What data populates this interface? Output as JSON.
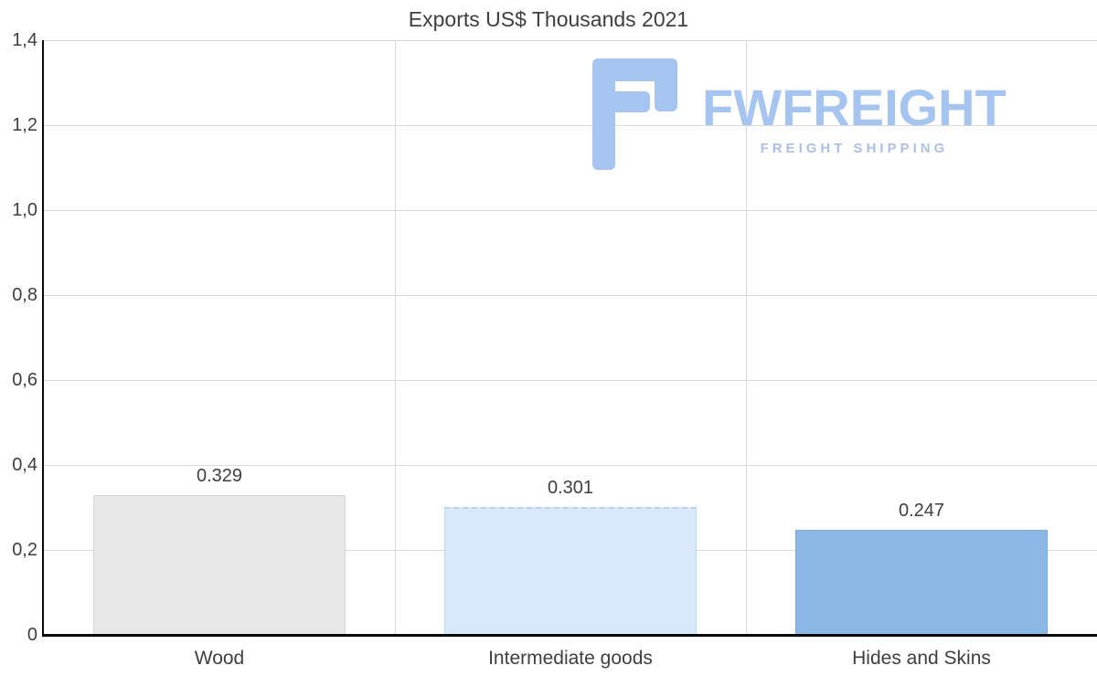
{
  "chart_data": {
    "type": "bar",
    "title": "Exports US$ Thousands 2021",
    "categories": [
      "Wood",
      "Intermediate goods",
      "Hides and Skins"
    ],
    "values": [
      0.329,
      0.301,
      0.247
    ],
    "value_labels": [
      "0.329",
      "0.301",
      "0.247"
    ],
    "bar_colors": [
      "#e8e8e8",
      "#d9e8fb",
      "#8cb8e6"
    ],
    "bar_border_colors": [
      "#d4d4d4",
      "#b9d5f6",
      "#7aace0"
    ],
    "xlabel": "",
    "ylabel": "",
    "ylim": [
      0,
      1.4
    ],
    "yticks": [
      0,
      0.2,
      0.4,
      0.6,
      0.8,
      1.0,
      1.2,
      1.4
    ],
    "ytick_labels": [
      "0",
      "0,2",
      "0,4",
      "0,6",
      "0,8",
      "1,0",
      "1,2",
      "1,4"
    ],
    "grid": true,
    "legend": false,
    "decimal_separator_axis": ","
  },
  "watermark": {
    "brand": "FWFREIGHT",
    "tagline": "FREIGHT SHIPPING",
    "brand_color": "#a6c4f0",
    "tagline_color": "#aebfe8",
    "icon_color": "#a6c4f0",
    "icon": "fwfreight-logo-icon"
  },
  "colors": {
    "background": "#ffffff",
    "gridline": "#d9d9d9",
    "axis": "#0a0a0a",
    "text": "#3f3f3f"
  }
}
